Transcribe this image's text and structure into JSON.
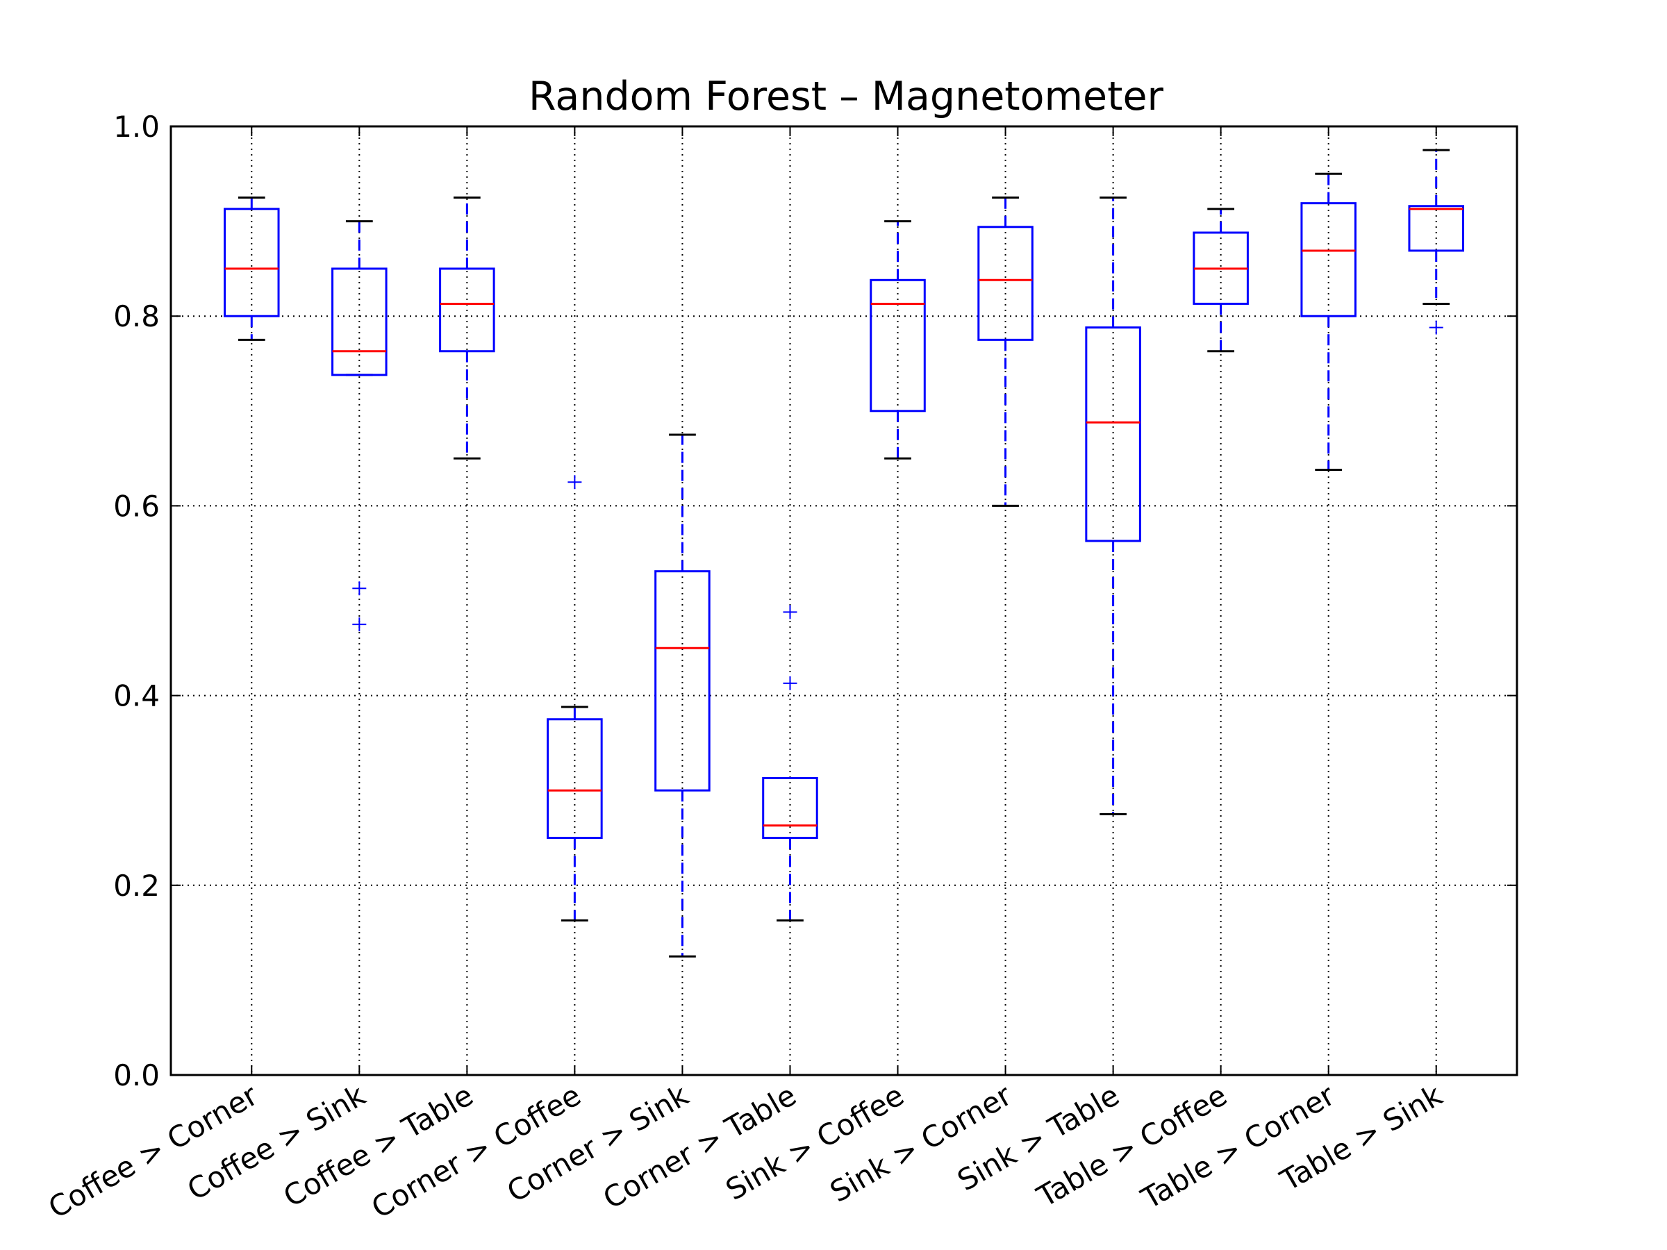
{
  "chart_data": {
    "type": "box",
    "title": "Random Forest – Magnetometer",
    "xlabel": "",
    "ylabel": "",
    "ylim": [
      0.0,
      1.0
    ],
    "yticks": [
      "0.0",
      "0.2",
      "0.4",
      "0.6",
      "0.8",
      "1.0"
    ],
    "grid": true,
    "legend": "none",
    "colors": {
      "box": "#0000ff",
      "median": "#ff0000",
      "cap": "#000000",
      "flier": "#0000ff",
      "grid": "#000000"
    },
    "categories": [
      "Coffee > Corner",
      "Coffee > Sink",
      "Coffee > Table",
      "Corner > Coffee",
      "Corner > Sink",
      "Corner > Table",
      "Sink > Coffee",
      "Sink > Corner",
      "Sink > Table",
      "Table > Coffee",
      "Table > Corner",
      "Table > Sink"
    ],
    "boxes": [
      {
        "whisker_low": 0.775,
        "q1": 0.8,
        "median": 0.85,
        "q3": 0.913,
        "whisker_high": 0.925,
        "outliers": []
      },
      {
        "whisker_low": 0.738,
        "q1": 0.738,
        "median": 0.763,
        "q3": 0.85,
        "whisker_high": 0.9,
        "outliers": [
          0.513,
          0.475
        ]
      },
      {
        "whisker_low": 0.65,
        "q1": 0.763,
        "median": 0.813,
        "q3": 0.85,
        "whisker_high": 0.925,
        "outliers": []
      },
      {
        "whisker_low": 0.163,
        "q1": 0.25,
        "median": 0.3,
        "q3": 0.375,
        "whisker_high": 0.388,
        "outliers": [
          0.625
        ]
      },
      {
        "whisker_low": 0.125,
        "q1": 0.3,
        "median": 0.45,
        "q3": 0.531,
        "whisker_high": 0.675,
        "outliers": []
      },
      {
        "whisker_low": 0.163,
        "q1": 0.25,
        "median": 0.263,
        "q3": 0.313,
        "whisker_high": 0.313,
        "outliers": [
          0.488,
          0.413
        ]
      },
      {
        "whisker_low": 0.65,
        "q1": 0.7,
        "median": 0.813,
        "q3": 0.838,
        "whisker_high": 0.9,
        "outliers": []
      },
      {
        "whisker_low": 0.6,
        "q1": 0.775,
        "median": 0.838,
        "q3": 0.894,
        "whisker_high": 0.925,
        "outliers": []
      },
      {
        "whisker_low": 0.275,
        "q1": 0.563,
        "median": 0.688,
        "q3": 0.788,
        "whisker_high": 0.925,
        "outliers": []
      },
      {
        "whisker_low": 0.763,
        "q1": 0.813,
        "median": 0.85,
        "q3": 0.888,
        "whisker_high": 0.913,
        "outliers": []
      },
      {
        "whisker_low": 0.638,
        "q1": 0.8,
        "median": 0.869,
        "q3": 0.919,
        "whisker_high": 0.95,
        "outliers": []
      },
      {
        "whisker_low": 0.813,
        "q1": 0.869,
        "median": 0.913,
        "q3": 0.916,
        "whisker_high": 0.975,
        "outliers": [
          0.788
        ]
      }
    ]
  }
}
